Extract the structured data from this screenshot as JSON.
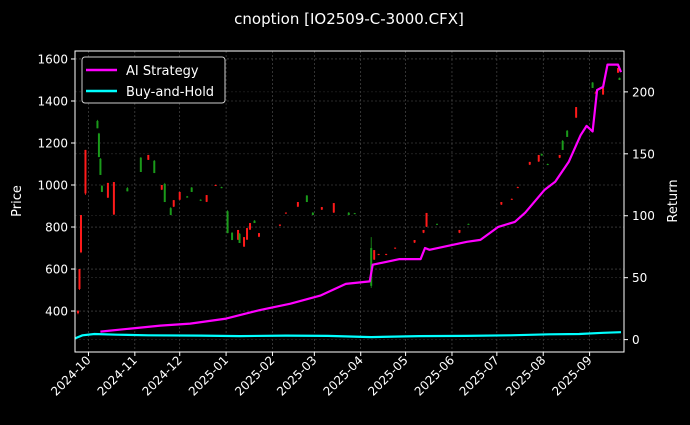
{
  "chart_data": {
    "type": "candlestick+line",
    "title": "cnoption [IO2509-C-3000.CFX]",
    "ylabel_left": "Price",
    "ylabel_right": "Return",
    "xlim": [
      "2024-09-22",
      "2025-09-24"
    ],
    "ylim_left": [
      205,
      1638
    ],
    "ylim_right": [
      -10,
      233
    ],
    "grid": true,
    "legend_position": "top-left",
    "x_ticks": [
      "2024-10",
      "2024-11",
      "2024-12",
      "2025-01",
      "2025-02",
      "2025-03",
      "2025-04",
      "2025-05",
      "2025-06",
      "2025-07",
      "2025-08",
      "2025-09"
    ],
    "y_ticks_left": [
      400,
      600,
      800,
      1000,
      1200,
      1400,
      1600
    ],
    "y_ticks_right": [
      0,
      50,
      100,
      150,
      200
    ],
    "colors": {
      "up": "#1a9a1a",
      "down": "#ff1a1a",
      "ai": "#ff00ff",
      "bh": "#00ffff",
      "background": "#000000",
      "grid": "#555555"
    },
    "candles_fields": [
      "date",
      "open",
      "high",
      "low",
      "close"
    ],
    "candles": [
      [
        "2024-09-24",
        400,
        405,
        385,
        390
      ],
      [
        "2024-09-25",
        600,
        600,
        500,
        505
      ],
      [
        "2024-09-26",
        857,
        857,
        676,
        680
      ],
      [
        "2024-09-29",
        1167,
        1167,
        953,
        960
      ],
      [
        "2024-10-07",
        1270,
        1310,
        1270,
        1305
      ],
      [
        "2024-10-08",
        1133,
        1248,
        1133,
        1245
      ],
      [
        "2024-10-09",
        1048,
        1128,
        1048,
        1125
      ],
      [
        "2024-10-10",
        967,
        1000,
        967,
        995
      ],
      [
        "2024-10-14",
        1010,
        1010,
        938,
        940
      ],
      [
        "2024-10-18",
        1014,
        1014,
        857,
        860
      ],
      [
        "2024-10-27",
        970,
        990,
        970,
        985
      ],
      [
        "2024-11-05",
        1062,
        1133,
        1062,
        1130
      ],
      [
        "2024-11-10",
        1143,
        1143,
        1119,
        1120
      ],
      [
        "2024-11-14",
        1057,
        1119,
        1057,
        1115
      ],
      [
        "2024-11-19",
        1000,
        1000,
        976,
        978
      ],
      [
        "2024-11-21",
        919,
        1010,
        919,
        1005
      ],
      [
        "2024-11-25",
        857,
        895,
        857,
        890
      ],
      [
        "2024-11-27",
        928,
        928,
        895,
        897
      ],
      [
        "2024-12-01",
        967,
        967,
        928,
        930
      ],
      [
        "2024-12-06",
        940,
        948,
        940,
        946
      ],
      [
        "2024-12-09",
        967,
        990,
        967,
        988
      ],
      [
        "2024-12-15",
        925,
        932,
        925,
        930
      ],
      [
        "2024-12-19",
        952,
        952,
        919,
        920
      ],
      [
        "2024-12-25",
        1000,
        1002,
        998,
        999
      ],
      [
        "2024-12-29",
        985,
        992,
        985,
        990
      ],
      [
        "2025-01-02",
        771,
        880,
        771,
        875
      ],
      [
        "2025-01-05",
        738,
        776,
        738,
        772
      ],
      [
        "2025-01-09",
        786,
        786,
        738,
        740
      ],
      [
        "2025-01-10",
        724,
        771,
        724,
        768
      ],
      [
        "2025-01-13",
        752,
        752,
        705,
        707
      ],
      [
        "2025-01-15",
        795,
        795,
        738,
        740
      ],
      [
        "2025-01-17",
        819,
        819,
        786,
        788
      ],
      [
        "2025-01-20",
        819,
        833,
        819,
        830
      ],
      [
        "2025-01-23",
        771,
        771,
        752,
        754
      ],
      [
        "2025-02-06",
        812,
        812,
        805,
        806
      ],
      [
        "2025-02-10",
        869,
        869,
        863,
        864
      ],
      [
        "2025-02-18",
        919,
        919,
        895,
        897
      ],
      [
        "2025-02-24",
        919,
        952,
        919,
        950
      ],
      [
        "2025-02-28",
        857,
        871,
        857,
        868
      ],
      [
        "2025-03-06",
        895,
        895,
        881,
        883
      ],
      [
        "2025-03-14",
        914,
        914,
        867,
        869
      ],
      [
        "2025-03-24",
        857,
        871,
        857,
        868
      ],
      [
        "2025-03-28",
        864,
        867,
        862,
        866
      ],
      [
        "2025-04-08",
        520,
        752,
        510,
        700
      ],
      [
        "2025-04-10",
        690,
        690,
        643,
        645
      ],
      [
        "2025-04-13",
        672,
        672,
        666,
        667
      ],
      [
        "2025-04-18",
        672,
        672,
        666,
        667
      ],
      [
        "2025-04-24",
        702,
        702,
        696,
        697
      ],
      [
        "2025-05-07",
        738,
        738,
        724,
        726
      ],
      [
        "2025-05-13",
        786,
        786,
        771,
        773
      ],
      [
        "2025-05-15",
        867,
        867,
        800,
        802
      ],
      [
        "2025-05-22",
        814,
        816,
        812,
        815
      ],
      [
        "2025-06-06",
        786,
        786,
        771,
        773
      ],
      [
        "2025-06-12",
        812,
        816,
        812,
        815
      ],
      [
        "2025-07-04",
        919,
        919,
        905,
        907
      ],
      [
        "2025-07-11",
        934,
        936,
        930,
        932
      ],
      [
        "2025-07-15",
        990,
        992,
        986,
        988
      ],
      [
        "2025-07-23",
        1110,
        1110,
        1095,
        1097
      ],
      [
        "2025-07-29",
        1143,
        1143,
        1110,
        1112
      ],
      [
        "2025-07-31",
        1140,
        1150,
        1140,
        1148
      ],
      [
        "2025-08-04",
        1095,
        1102,
        1095,
        1100
      ],
      [
        "2025-08-12",
        1143,
        1143,
        1128,
        1130
      ],
      [
        "2025-08-14",
        1167,
        1214,
        1167,
        1210
      ],
      [
        "2025-08-17",
        1229,
        1262,
        1229,
        1258
      ],
      [
        "2025-08-23",
        1371,
        1371,
        1319,
        1321
      ],
      [
        "2025-09-03",
        1462,
        1490,
        1462,
        1488
      ],
      [
        "2025-09-05",
        1440,
        1446,
        1436,
        1438
      ],
      [
        "2025-09-10",
        1462,
        1462,
        1429,
        1431
      ],
      [
        "2025-09-20",
        1557,
        1557,
        1533,
        1535
      ],
      [
        "2025-09-21",
        1500,
        1512,
        1500,
        1510
      ]
    ],
    "series": [
      {
        "name": "AI Strategy",
        "axis": "right",
        "points": [
          [
            "2024-10-09",
            6.5
          ],
          [
            "2024-10-29",
            8.9
          ],
          [
            "2024-11-18",
            11.3
          ],
          [
            "2024-12-08",
            12.9
          ],
          [
            "2025-01-01",
            17
          ],
          [
            "2025-01-24",
            24
          ],
          [
            "2025-02-13",
            29
          ],
          [
            "2025-03-05",
            35.5
          ],
          [
            "2025-03-22",
            45
          ],
          [
            "2025-04-07",
            47
          ],
          [
            "2025-04-09",
            60.5
          ],
          [
            "2025-04-27",
            65
          ],
          [
            "2025-05-11",
            65
          ],
          [
            "2025-05-14",
            74
          ],
          [
            "2025-05-17",
            72.5
          ],
          [
            "2025-06-11",
            79
          ],
          [
            "2025-06-20",
            80.5
          ],
          [
            "2025-07-02",
            91
          ],
          [
            "2025-07-13",
            95
          ],
          [
            "2025-07-20",
            102.5
          ],
          [
            "2025-08-02",
            121
          ],
          [
            "2025-08-09",
            127.5
          ],
          [
            "2025-08-18",
            143.5
          ],
          [
            "2025-08-26",
            165
          ],
          [
            "2025-08-30",
            172.5
          ],
          [
            "2025-09-03",
            168
          ],
          [
            "2025-09-06",
            201.5
          ],
          [
            "2025-09-10",
            204
          ],
          [
            "2025-09-13",
            222
          ],
          [
            "2025-09-20",
            222
          ],
          [
            "2025-09-22",
            216
          ]
        ]
      },
      {
        "name": "Buy-and-Hold",
        "axis": "right",
        "points": [
          [
            "2024-09-22",
            1
          ],
          [
            "2024-09-27",
            3.5
          ],
          [
            "2024-10-05",
            4.5
          ],
          [
            "2024-10-20",
            4
          ],
          [
            "2024-11-10",
            3.5
          ],
          [
            "2024-12-15",
            3.2
          ],
          [
            "2025-01-10",
            2.8
          ],
          [
            "2025-02-10",
            3.2
          ],
          [
            "2025-03-10",
            3
          ],
          [
            "2025-04-08",
            2
          ],
          [
            "2025-05-10",
            2.8
          ],
          [
            "2025-06-10",
            3
          ],
          [
            "2025-07-10",
            3.5
          ],
          [
            "2025-08-05",
            4.3
          ],
          [
            "2025-08-25",
            4.5
          ],
          [
            "2025-09-10",
            5.5
          ],
          [
            "2025-09-22",
            6
          ]
        ]
      }
    ]
  }
}
